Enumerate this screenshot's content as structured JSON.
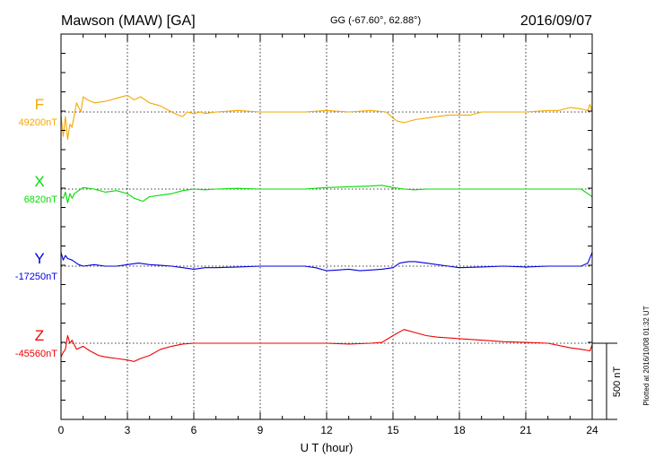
{
  "chart_data": {
    "type": "line",
    "title": "Mawson (MAW)  [GA]",
    "coords": "GG (-67.60°,  62.88°)",
    "date": "2016/09/07",
    "xlabel": "U T (hour)",
    "xlim": [
      0,
      24
    ],
    "xticks": [
      "0",
      "3",
      "6",
      "9",
      "12",
      "15",
      "18",
      "21",
      "24"
    ],
    "scale_label": "500 nT",
    "scale_nT": 500,
    "plotted_note": "Plotted at 2016/10/08 01:32 UT",
    "grid": "dotted",
    "series": [
      {
        "name": "F",
        "baseline_label": "49200nT",
        "color": "#f5a800",
        "x": [
          0,
          0.1,
          0.2,
          0.3,
          0.4,
          0.5,
          0.7,
          0.9,
          1.0,
          1.2,
          1.5,
          2,
          2.5,
          3,
          3.3,
          3.6,
          4,
          4.5,
          5,
          5.3,
          5.5,
          5.7,
          6,
          6.3,
          6.5,
          7,
          8,
          9,
          10,
          11,
          12,
          13,
          14,
          14.7,
          15,
          15.2,
          15.5,
          16,
          16.5,
          17,
          17.5,
          18,
          18.5,
          19,
          20,
          21,
          22,
          22.5,
          23,
          23.5,
          23.8,
          23.9,
          24
        ],
        "y": [
          -20,
          -160,
          -30,
          -180,
          -80,
          -100,
          60,
          0,
          100,
          80,
          60,
          70,
          90,
          110,
          80,
          100,
          60,
          40,
          0,
          -20,
          -30,
          0,
          -10,
          0,
          -10,
          0,
          10,
          0,
          0,
          0,
          10,
          0,
          10,
          0,
          -40,
          -60,
          -70,
          -50,
          -40,
          -30,
          -20,
          -20,
          -20,
          0,
          0,
          0,
          10,
          10,
          30,
          20,
          10,
          50,
          0
        ]
      },
      {
        "name": "X",
        "baseline_label": "6820nT",
        "color": "#00dd00",
        "x": [
          0,
          0.1,
          0.2,
          0.3,
          0.4,
          0.5,
          0.6,
          0.8,
          1.0,
          1.5,
          2,
          2.5,
          3,
          3.3,
          3.7,
          4,
          4.5,
          5,
          5.5,
          6,
          6.5,
          7,
          8,
          9,
          10,
          11,
          12,
          13,
          14,
          14.5,
          15,
          15.5,
          16,
          16.5,
          17,
          18,
          19,
          20,
          21,
          22,
          23,
          23.5,
          23.9,
          24
        ],
        "y": [
          -50,
          -60,
          -20,
          -90,
          -30,
          -60,
          -30,
          -10,
          10,
          0,
          -20,
          -10,
          -30,
          -60,
          -80,
          -50,
          -40,
          -30,
          -10,
          0,
          -5,
          0,
          5,
          0,
          0,
          0,
          10,
          15,
          20,
          25,
          10,
          0,
          -5,
          0,
          0,
          0,
          0,
          0,
          0,
          0,
          0,
          0,
          -40,
          -50
        ]
      },
      {
        "name": "Y",
        "baseline_label": "-17250nT",
        "color": "#0000dd",
        "x": [
          0,
          0.1,
          0.2,
          0.3,
          0.5,
          0.8,
          1.0,
          1.5,
          2,
          2.5,
          3,
          3.5,
          4,
          4.5,
          5,
          5.5,
          6,
          6.5,
          7,
          8,
          9,
          10,
          11,
          11.5,
          12,
          12.5,
          13,
          13.5,
          14,
          14.5,
          15,
          15.3,
          15.7,
          16,
          16.5,
          17,
          17.5,
          18,
          19,
          20,
          21,
          22,
          23,
          23.5,
          23.8,
          24
        ],
        "y": [
          90,
          40,
          70,
          50,
          40,
          10,
          0,
          10,
          0,
          0,
          10,
          20,
          10,
          5,
          0,
          -10,
          -20,
          -10,
          -10,
          -5,
          0,
          0,
          0,
          -10,
          -30,
          -25,
          -20,
          -30,
          -25,
          -20,
          -10,
          20,
          30,
          30,
          20,
          10,
          0,
          -10,
          -5,
          0,
          -5,
          0,
          0,
          0,
          20,
          90
        ]
      },
      {
        "name": "Z",
        "baseline_label": "-45560nT",
        "color": "#ee0000",
        "x": [
          0,
          0.1,
          0.2,
          0.3,
          0.4,
          0.5,
          0.7,
          1.0,
          1.3,
          1.7,
          2,
          2.5,
          3,
          3.3,
          3.6,
          4,
          4.5,
          5,
          5.5,
          6,
          6.5,
          7,
          8,
          9,
          10,
          11,
          12,
          13,
          14,
          14.5,
          15,
          15.5,
          16,
          16.5,
          17,
          18,
          19,
          20,
          21,
          22,
          23,
          23.5,
          23.9,
          24
        ],
        "y": [
          -90,
          -60,
          -40,
          50,
          0,
          20,
          -40,
          -20,
          -50,
          -80,
          -90,
          -100,
          -110,
          -120,
          -100,
          -80,
          -40,
          -20,
          -5,
          0,
          0,
          0,
          0,
          0,
          0,
          0,
          0,
          -5,
          0,
          5,
          50,
          90,
          70,
          50,
          40,
          30,
          20,
          10,
          5,
          0,
          -30,
          -40,
          -50,
          -10
        ]
      }
    ]
  }
}
